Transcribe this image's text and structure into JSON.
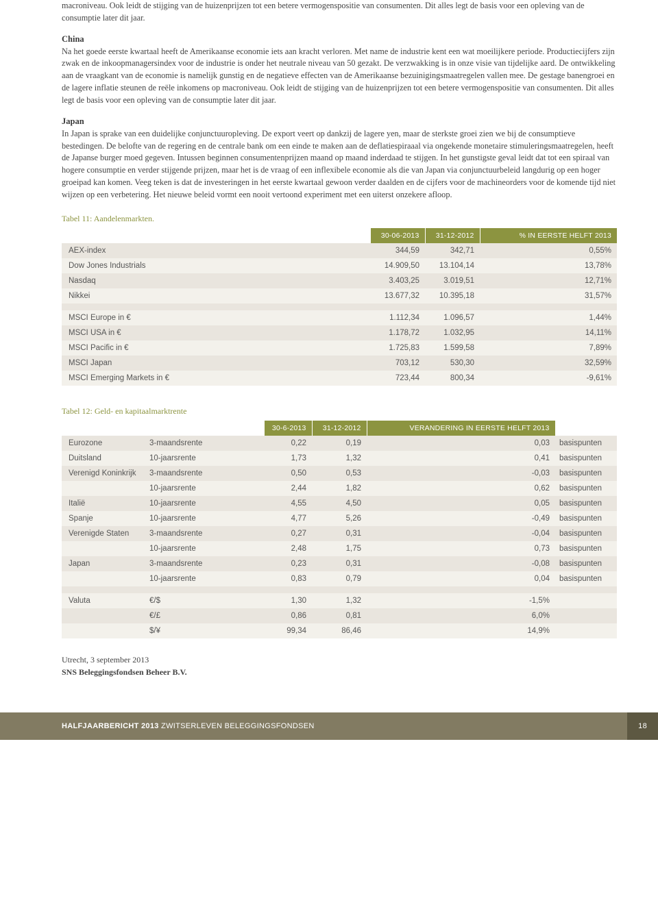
{
  "intro_paragraph": "macroniveau. Ook leidt de stijging van de huizenprijzen tot een betere vermogenspositie van consumenten. Dit alles legt de basis voor een opleving van de consumptie later dit jaar.",
  "sections": [
    {
      "heading": "China",
      "body": "Na het goede eerste kwartaal heeft de Amerikaanse economie iets aan kracht verloren. Met name de industrie kent een wat moeilijkere periode. Productiecijfers zijn zwak en de inkoopmanagersindex voor de industrie is onder het neutrale niveau van 50 gezakt. De verzwakking is in onze visie van tijdelijke aard. De ontwikkeling aan de vraagkant van de economie is namelijk gunstig en de negatieve effecten van de Amerikaanse bezuinigingsmaatregelen vallen mee. De gestage banengroei en de lagere inflatie steunen de reële inkomens op macroniveau. Ook leidt de stijging van de huizenprijzen tot een betere vermogenspositie van consumenten. Dit alles legt de basis voor een opleving van de consumptie later dit jaar."
    },
    {
      "heading": "Japan",
      "body": "In Japan is sprake van een duidelijke conjunctuuropleving. De export veert op dankzij de lagere yen, maar de sterkste groei zien we bij de consumptieve bestedingen. De belofte van de regering en de centrale bank om een einde te maken aan de deflatiespiraaal via ongekende monetaire stimuleringsmaatregelen, heeft de Japanse burger moed gegeven. Intussen beginnen consumentenprijzen maand op maand inderdaad te stijgen. In het gunstigste geval leidt dat tot een spiraal van hogere consumptie en verder stijgende prijzen, maar het is de vraag of een inflexibele economie als die van Japan via conjunctuurbeleid langdurig op een hoger groeipad kan komen. Veeg teken is dat de investeringen in het eerste kwartaal gewoon verder daalden en de cijfers voor de machineorders voor de komende tijd niet wijzen op een verbetering. Het nieuwe beleid vormt een nooit vertoond experiment met een uiterst onzekere afloop."
    }
  ],
  "table11": {
    "caption": "Tabel 11:  Aandelenmarkten.",
    "headers": [
      "",
      "30-06-2013",
      "31-12-2012",
      "% IN EERSTE HELFT 2013"
    ],
    "rows": [
      {
        "cls": "a",
        "c": [
          "AEX-index",
          "344,59",
          "342,71",
          "0,55%"
        ]
      },
      {
        "cls": "b",
        "c": [
          "Dow Jones Industrials",
          "14.909,50",
          "13.104,14",
          "13,78%"
        ]
      },
      {
        "cls": "a",
        "c": [
          "Nasdaq",
          "3.403,25",
          "3.019,51",
          "12,71%"
        ]
      },
      {
        "cls": "b",
        "c": [
          "Nikkei",
          "13.677,32",
          "10.395,18",
          "31,57%"
        ]
      },
      {
        "cls": "a",
        "c": [
          "",
          "",
          "",
          ""
        ]
      },
      {
        "cls": "b",
        "c": [
          "MSCI Europe in €",
          "1.112,34",
          "1.096,57",
          "1,44%"
        ]
      },
      {
        "cls": "a",
        "c": [
          "MSCI USA in €",
          "1.178,72",
          "1.032,95",
          "14,11%"
        ]
      },
      {
        "cls": "b",
        "c": [
          "MSCI Pacific in €",
          "1.725,83",
          "1.599,58",
          "7,89%"
        ]
      },
      {
        "cls": "a",
        "c": [
          "MSCI Japan",
          "703,12",
          "530,30",
          "32,59%"
        ]
      },
      {
        "cls": "b",
        "c": [
          "MSCI Emerging Markets in €",
          "723,44",
          "800,34",
          "-9,61%"
        ]
      }
    ]
  },
  "table12": {
    "caption": "Tabel 12:  Geld- en kapitaalmarktrente",
    "headers": [
      "",
      "",
      "30-6-2013",
      "31-12-2012",
      "VERANDERING IN EERSTE HELFT 2013",
      ""
    ],
    "rows": [
      {
        "cls": "a",
        "c": [
          "Eurozone",
          "3-maandsrente",
          "0,22",
          "0,19",
          "0,03",
          "basispunten"
        ]
      },
      {
        "cls": "b",
        "c": [
          "Duitsland",
          "10-jaarsrente",
          "1,73",
          "1,32",
          "0,41",
          "basispunten"
        ]
      },
      {
        "cls": "a",
        "c": [
          "Verenigd Koninkrijk",
          "3-maandsrente",
          "0,50",
          "0,53",
          "-0,03",
          "basispunten"
        ]
      },
      {
        "cls": "b",
        "c": [
          "",
          "10-jaarsrente",
          "2,44",
          "1,82",
          "0,62",
          "basispunten"
        ]
      },
      {
        "cls": "a",
        "c": [
          "Italië",
          "10-jaarsrente",
          "4,55",
          "4,50",
          "0,05",
          "basispunten"
        ]
      },
      {
        "cls": "b",
        "c": [
          "Spanje",
          "10-jaarsrente",
          "4,77",
          "5,26",
          "-0,49",
          "basispunten"
        ]
      },
      {
        "cls": "a",
        "c": [
          "Verenigde Staten",
          "3-maandsrente",
          "0,27",
          "0,31",
          "-0,04",
          "basispunten"
        ]
      },
      {
        "cls": "b",
        "c": [
          "",
          "10-jaarsrente",
          "2,48",
          "1,75",
          "0,73",
          "basispunten"
        ]
      },
      {
        "cls": "a",
        "c": [
          "Japan",
          "3-maandsrente",
          "0,23",
          "0,31",
          "-0,08",
          "basispunten"
        ]
      },
      {
        "cls": "b",
        "c": [
          "",
          "10-jaarsrente",
          "0,83",
          "0,79",
          "0,04",
          "basispunten"
        ]
      },
      {
        "cls": "a",
        "c": [
          "",
          "",
          "",
          "",
          "",
          ""
        ]
      },
      {
        "cls": "b",
        "c": [
          "Valuta",
          "€/$",
          "1,30",
          "1,32",
          "-1,5%",
          ""
        ]
      },
      {
        "cls": "a",
        "c": [
          "",
          "€/£",
          "0,86",
          "0,81",
          "6,0%",
          ""
        ]
      },
      {
        "cls": "b",
        "c": [
          "",
          "$/¥",
          "99,34",
          "86,46",
          "14,9%",
          ""
        ]
      }
    ]
  },
  "signature": {
    "place_date": "Utrecht, 3 september 2013",
    "entity": "SNS Beleggingsfondsen Beheer B.V."
  },
  "footer": {
    "bold": "HALFJAARBERICHT 2013",
    "rest": " ZWITSERLEVEN BELEGGINGSFONDSEN",
    "page": "18"
  },
  "colors": {
    "olive": "#8c9440",
    "row_a": "#e9e5de",
    "row_b": "#f3f1eb",
    "footer_bg": "#827b62",
    "footer_pg": "#5d5842"
  }
}
